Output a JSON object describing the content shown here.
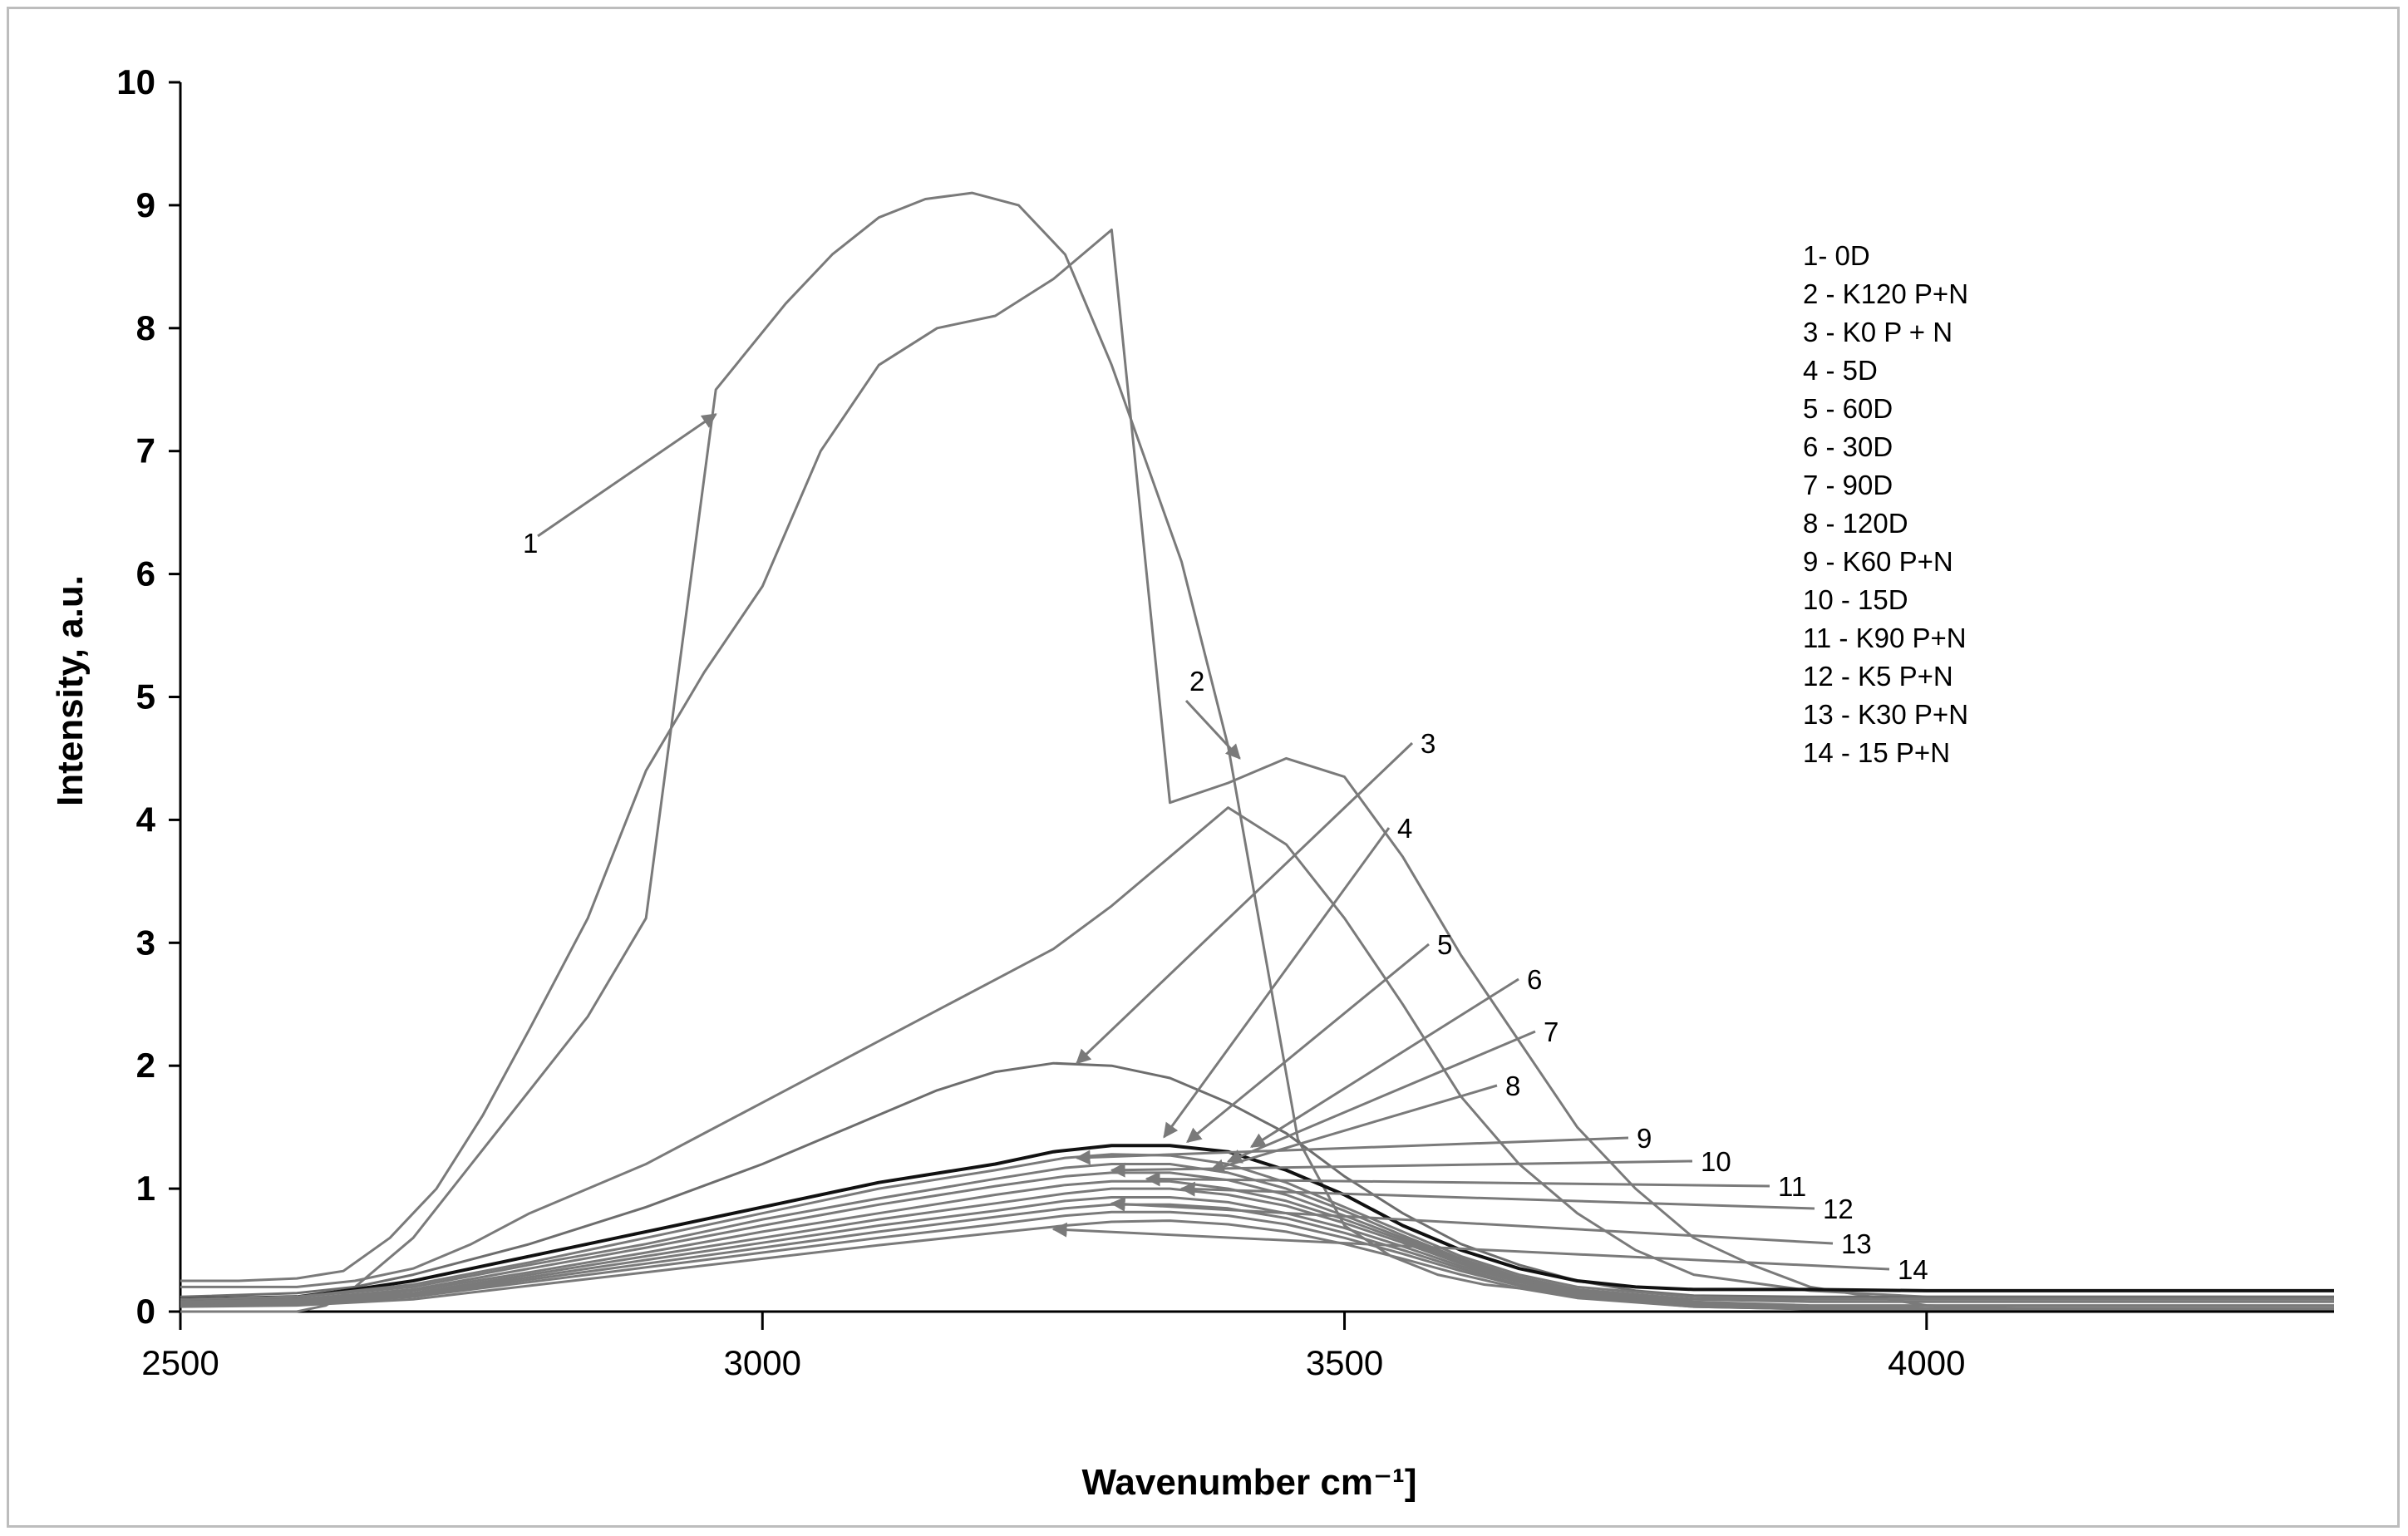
{
  "chart_data": {
    "type": "line",
    "title": "",
    "xlabel": "Wavenumber cm⁻¹]",
    "ylabel": "Intensity,  a.u.",
    "xlim": [
      2500,
      4350
    ],
    "ylim": [
      0,
      10
    ],
    "xticks": [
      2500,
      3000,
      3500,
      4000
    ],
    "yticks": [
      0,
      1,
      2,
      3,
      4,
      5,
      6,
      7,
      8,
      9,
      10
    ],
    "grid": false,
    "legend_position": "top-right",
    "series": [
      {
        "name": "1- 0D",
        "label": "1",
        "color": "#7a7a7a",
        "width": 3,
        "x": [
          2500,
          2550,
          2600,
          2625,
          2650,
          2700,
          2750,
          2800,
          2850,
          2900,
          2960,
          3020,
          3060,
          3100,
          3140,
          3180,
          3220,
          3260,
          3300,
          3360,
          3400,
          3460,
          3500,
          3540,
          3580,
          3620,
          3660,
          3700,
          3750,
          3800,
          3850,
          3900,
          4000,
          4100,
          4200,
          4300,
          4350
        ],
        "y": [
          0.0,
          0.0,
          0.0,
          0.05,
          0.2,
          0.6,
          1.2,
          1.8,
          2.4,
          3.2,
          7.5,
          8.2,
          8.6,
          8.9,
          9.05,
          9.1,
          9.0,
          8.6,
          7.7,
          6.1,
          4.6,
          1.4,
          0.7,
          0.45,
          0.3,
          0.22,
          0.18,
          0.15,
          0.12,
          0.1,
          0.1,
          0.1,
          0.1,
          0.1,
          0.1,
          0.1,
          0.1
        ],
        "callout": {
          "text": "1",
          "target": [
            2960,
            7.3
          ]
        }
      },
      {
        "name": "2 - K120 P+N",
        "label": "2",
        "color": "#7a7a7a",
        "width": 3,
        "x": [
          2500,
          2550,
          2600,
          2640,
          2680,
          2720,
          2760,
          2800,
          2850,
          2900,
          2950,
          3000,
          3050,
          3100,
          3150,
          3200,
          3250,
          3300,
          3350,
          3400,
          3450,
          3500,
          3550,
          3600,
          3650,
          3700,
          3750,
          3800,
          3850,
          3900,
          4000,
          4100,
          4200,
          4300,
          4350
        ],
        "y": [
          0.25,
          0.25,
          0.27,
          0.33,
          0.6,
          1.0,
          1.6,
          2.3,
          3.2,
          4.4,
          5.2,
          5.9,
          7.0,
          7.7,
          8.0,
          8.1,
          8.4,
          8.8,
          4.14,
          4.3,
          4.5,
          4.35,
          3.7,
          2.9,
          2.2,
          1.5,
          1.0,
          0.6,
          0.38,
          0.2,
          0.05,
          0.02,
          0.02,
          0.02,
          0.02
        ],
        "callout": {
          "text": "2",
          "target": [
            3410,
            4.5
          ]
        }
      },
      {
        "name": "3 - K0 P + N",
        "label": "3",
        "color": "#7a7a7a",
        "width": 3,
        "x": [
          2500,
          2600,
          2650,
          2700,
          2750,
          2800,
          2850,
          2900,
          2950,
          3000,
          3050,
          3100,
          3150,
          3200,
          3250,
          3300,
          3350,
          3400,
          3450,
          3500,
          3550,
          3600,
          3650,
          3700,
          3750,
          3800,
          3900,
          4000,
          4100,
          4200,
          4300,
          4350
        ],
        "y": [
          0.2,
          0.2,
          0.25,
          0.35,
          0.55,
          0.8,
          1.0,
          1.2,
          1.45,
          1.7,
          1.95,
          2.2,
          2.45,
          2.7,
          2.95,
          3.3,
          3.7,
          4.1,
          3.8,
          3.2,
          2.5,
          1.75,
          1.2,
          0.8,
          0.5,
          0.3,
          0.17,
          0.12,
          0.12,
          0.12,
          0.12,
          0.12
        ],
        "callout": {
          "text": "3",
          "target": [
            3270,
            2.02
          ]
        }
      },
      {
        "name": "4 - 5D",
        "label": "4",
        "color": "#6d6d6d",
        "width": 3,
        "x": [
          2500,
          2600,
          2650,
          2700,
          2800,
          2900,
          3000,
          3100,
          3150,
          3200,
          3250,
          3300,
          3350,
          3400,
          3450,
          3500,
          3550,
          3600,
          3650,
          3700,
          3750,
          3800,
          3900,
          4000,
          4100,
          4200,
          4300,
          4350
        ],
        "y": [
          0.12,
          0.15,
          0.2,
          0.3,
          0.55,
          0.85,
          1.2,
          1.6,
          1.8,
          1.95,
          2.02,
          2.0,
          1.9,
          1.7,
          1.45,
          1.1,
          0.8,
          0.55,
          0.38,
          0.25,
          0.17,
          0.13,
          0.12,
          0.12,
          0.12,
          0.12,
          0.12,
          0.12
        ],
        "callout": {
          "text": "4",
          "target": [
            3345,
            1.42
          ]
        }
      },
      {
        "name": "5 - 60D",
        "label": "5",
        "color": "#111111",
        "width": 4,
        "x": [
          2500,
          2600,
          2650,
          2700,
          2800,
          2900,
          3000,
          3100,
          3200,
          3250,
          3300,
          3350,
          3400,
          3450,
          3500,
          3550,
          3600,
          3650,
          3700,
          3750,
          3800,
          3900,
          4000,
          4100,
          4200,
          4300,
          4350
        ],
        "y": [
          0.1,
          0.12,
          0.18,
          0.25,
          0.45,
          0.65,
          0.85,
          1.05,
          1.2,
          1.3,
          1.35,
          1.35,
          1.3,
          1.15,
          0.95,
          0.7,
          0.5,
          0.35,
          0.25,
          0.2,
          0.18,
          0.18,
          0.17,
          0.17,
          0.17,
          0.17,
          0.17
        ],
        "callout": {
          "text": "5",
          "target": [
            3365,
            1.38
          ]
        }
      },
      {
        "name": "6 - 30D",
        "label": "6",
        "color": "#7a7a7a",
        "width": 3,
        "x": [
          2500,
          2600,
          2700,
          2800,
          2900,
          3000,
          3100,
          3200,
          3260,
          3300,
          3350,
          3400,
          3450,
          3500,
          3550,
          3600,
          3650,
          3700,
          3800,
          3900,
          4000,
          4100,
          4200,
          4300,
          4350
        ],
        "y": [
          0.1,
          0.12,
          0.22,
          0.4,
          0.6,
          0.8,
          1.0,
          1.15,
          1.25,
          1.28,
          1.27,
          1.2,
          1.05,
          0.85,
          0.65,
          0.45,
          0.3,
          0.2,
          0.12,
          0.1,
          0.1,
          0.1,
          0.1,
          0.1,
          0.1
        ],
        "callout": {
          "text": "6",
          "target": [
            3420,
            1.34
          ]
        }
      },
      {
        "name": "7 - 90D",
        "label": "7",
        "color": "#7a7a7a",
        "width": 3,
        "x": [
          2500,
          2600,
          2700,
          2800,
          2900,
          3000,
          3100,
          3200,
          3260,
          3300,
          3350,
          3400,
          3450,
          3500,
          3550,
          3600,
          3650,
          3700,
          3800,
          3900,
          4000,
          4100,
          4200,
          4300,
          4350
        ],
        "y": [
          0.1,
          0.12,
          0.2,
          0.38,
          0.55,
          0.75,
          0.92,
          1.08,
          1.17,
          1.2,
          1.2,
          1.13,
          1.0,
          0.82,
          0.62,
          0.43,
          0.28,
          0.18,
          0.1,
          0.08,
          0.08,
          0.08,
          0.08,
          0.08,
          0.08
        ],
        "callout": {
          "text": "7",
          "target": [
            3400,
            1.22
          ]
        }
      },
      {
        "name": "8 - 120D",
        "label": "8",
        "color": "#7a7a7a",
        "width": 3,
        "x": [
          2500,
          2600,
          2700,
          2800,
          2900,
          3000,
          3100,
          3200,
          3260,
          3300,
          3350,
          3400,
          3450,
          3500,
          3550,
          3600,
          3650,
          3700,
          3800,
          3900,
          4000,
          4100,
          4200,
          4300,
          4350
        ],
        "y": [
          0.08,
          0.1,
          0.18,
          0.35,
          0.52,
          0.7,
          0.87,
          1.02,
          1.1,
          1.13,
          1.13,
          1.07,
          0.95,
          0.78,
          0.6,
          0.42,
          0.27,
          0.17,
          0.08,
          0.05,
          0.05,
          0.05,
          0.05,
          0.05,
          0.05
        ],
        "callout": {
          "text": "8",
          "target": [
            3385,
            1.15
          ]
        }
      },
      {
        "name": "9 - K60 P+N",
        "label": "9",
        "color": "#7a7a7a",
        "width": 3,
        "x": [
          2500,
          2600,
          2700,
          2800,
          2900,
          3000,
          3100,
          3200,
          3260,
          3300,
          3350,
          3400,
          3450,
          3500,
          3550,
          3600,
          3650,
          3700,
          3800,
          3900,
          4000,
          4100,
          4200,
          4300,
          4350
        ],
        "y": [
          0.08,
          0.1,
          0.17,
          0.32,
          0.48,
          0.65,
          0.8,
          0.95,
          1.03,
          1.06,
          1.06,
          1.0,
          0.9,
          0.75,
          0.58,
          0.4,
          0.26,
          0.16,
          0.07,
          0.04,
          0.03,
          0.03,
          0.03,
          0.03,
          0.03
        ],
        "callout": {
          "text": "9",
          "target": [
            3270,
            1.25
          ]
        }
      },
      {
        "name": "10 - 15D",
        "label": "10",
        "color": "#7a7a7a",
        "width": 3,
        "x": [
          2500,
          2600,
          2700,
          2800,
          2900,
          3000,
          3100,
          3200,
          3260,
          3300,
          3350,
          3400,
          3450,
          3500,
          3550,
          3600,
          3650,
          3700,
          3800,
          3900,
          4000,
          4100,
          4200,
          4300,
          4350
        ],
        "y": [
          0.07,
          0.09,
          0.15,
          0.3,
          0.45,
          0.6,
          0.75,
          0.88,
          0.96,
          1.0,
          1.0,
          0.95,
          0.86,
          0.72,
          0.56,
          0.39,
          0.25,
          0.15,
          0.06,
          0.03,
          0.02,
          0.02,
          0.02,
          0.02,
          0.02
        ],
        "callout": {
          "text": "10",
          "target": [
            3300,
            1.15
          ]
        }
      },
      {
        "name": "11 - K90 P+N",
        "label": "11",
        "color": "#7a7a7a",
        "width": 3,
        "x": [
          2500,
          2600,
          2700,
          2800,
          2900,
          3000,
          3100,
          3200,
          3260,
          3300,
          3350,
          3400,
          3450,
          3500,
          3550,
          3600,
          3650,
          3700,
          3800,
          3900,
          4000,
          4100,
          4200,
          4300,
          4350
        ],
        "y": [
          0.06,
          0.08,
          0.14,
          0.28,
          0.42,
          0.56,
          0.7,
          0.82,
          0.9,
          0.93,
          0.93,
          0.89,
          0.8,
          0.68,
          0.53,
          0.37,
          0.24,
          0.14,
          0.05,
          0.02,
          0.02,
          0.02,
          0.02,
          0.02,
          0.02
        ],
        "callout": {
          "text": "11",
          "target": [
            3330,
            1.08
          ]
        }
      },
      {
        "name": "12 - K5 P+N",
        "label": "12",
        "color": "#7a7a7a",
        "width": 3,
        "x": [
          2500,
          2600,
          2700,
          2800,
          2900,
          3000,
          3100,
          3200,
          3260,
          3300,
          3350,
          3400,
          3450,
          3500,
          3550,
          3600,
          3650,
          3700,
          3800,
          3900,
          4000,
          4100,
          4200,
          4300,
          4350
        ],
        "y": [
          0.05,
          0.07,
          0.13,
          0.26,
          0.39,
          0.52,
          0.65,
          0.77,
          0.84,
          0.87,
          0.87,
          0.84,
          0.76,
          0.64,
          0.5,
          0.35,
          0.22,
          0.13,
          0.05,
          0.02,
          0.02,
          0.02,
          0.02,
          0.02,
          0.02
        ],
        "callout": {
          "text": "12",
          "target": [
            3360,
            1.0
          ]
        }
      },
      {
        "name": "13 - K30 P+N",
        "label": "13",
        "color": "#7a7a7a",
        "width": 3,
        "x": [
          2500,
          2600,
          2700,
          2800,
          2900,
          3000,
          3100,
          3200,
          3260,
          3300,
          3350,
          3400,
          3450,
          3500,
          3550,
          3600,
          3650,
          3700,
          3800,
          3900,
          4000,
          4100,
          4200,
          4300,
          4350
        ],
        "y": [
          0.05,
          0.06,
          0.12,
          0.24,
          0.36,
          0.48,
          0.6,
          0.71,
          0.78,
          0.81,
          0.81,
          0.78,
          0.71,
          0.6,
          0.47,
          0.33,
          0.21,
          0.12,
          0.04,
          0.02,
          0.02,
          0.02,
          0.02,
          0.02,
          0.02
        ],
        "callout": {
          "text": "13",
          "target": [
            3300,
            0.88
          ]
        }
      },
      {
        "name": "14 - 15 P+N",
        "label": "14",
        "color": "#7a7a7a",
        "width": 3,
        "x": [
          2500,
          2600,
          2700,
          2800,
          2900,
          3000,
          3100,
          3200,
          3260,
          3300,
          3350,
          3400,
          3450,
          3500,
          3550,
          3600,
          3650,
          3700,
          3800,
          3900,
          4000,
          4100,
          4200,
          4300,
          4350
        ],
        "y": [
          0.04,
          0.05,
          0.1,
          0.21,
          0.32,
          0.43,
          0.54,
          0.64,
          0.7,
          0.73,
          0.74,
          0.71,
          0.65,
          0.55,
          0.43,
          0.3,
          0.19,
          0.11,
          0.04,
          0.02,
          0.02,
          0.02,
          0.02,
          0.02,
          0.02
        ],
        "callout": {
          "text": "14",
          "target": [
            3250,
            0.67
          ]
        }
      }
    ]
  }
}
